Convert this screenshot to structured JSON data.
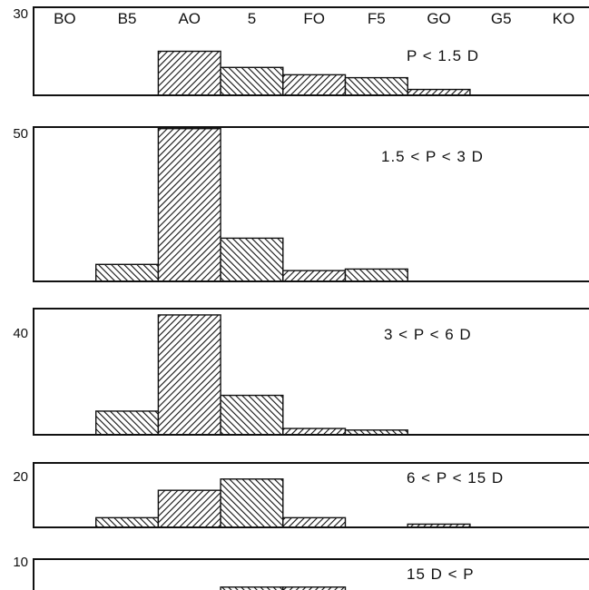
{
  "chart_data": {
    "type": "bar",
    "categories": [
      "B0",
      "B5",
      "A0",
      "5",
      "F0",
      "F5",
      "G0",
      "G5",
      "K0"
    ],
    "category_tick_labels": [
      "BO",
      "B5",
      "AO",
      "5",
      "FO",
      "F5",
      "GO",
      "G5",
      "KO"
    ],
    "grid": false,
    "panels": [
      {
        "label": "P < 1.5 D",
        "ymax_label": "30",
        "ylim": [
          0,
          30
        ],
        "values": [
          0,
          0,
          15,
          9.5,
          7,
          6,
          2,
          0,
          0
        ]
      },
      {
        "label": "1.5 < P < 3 D",
        "ymax_label": "50",
        "ylim": [
          0,
          50
        ],
        "values": [
          0,
          5.5,
          49.5,
          14,
          3.5,
          4,
          0,
          0,
          0
        ]
      },
      {
        "label": "3 < P < 6 D",
        "ymax_label": "40",
        "ylim": [
          0,
          40
        ],
        "values": [
          0,
          7.5,
          38,
          12.5,
          2,
          1.5,
          0,
          0,
          0
        ]
      },
      {
        "label": "6 < P < 15 D",
        "ymax_label": "20",
        "ylim": [
          0,
          20
        ],
        "values": [
          0,
          3,
          11.5,
          15,
          3,
          0,
          1,
          0,
          0
        ]
      },
      {
        "label": "15 D < P",
        "ymax_label": "10",
        "ylim": [
          0,
          10
        ],
        "values": [
          0,
          0,
          2,
          3,
          3,
          0,
          0,
          0,
          2
        ]
      }
    ]
  }
}
